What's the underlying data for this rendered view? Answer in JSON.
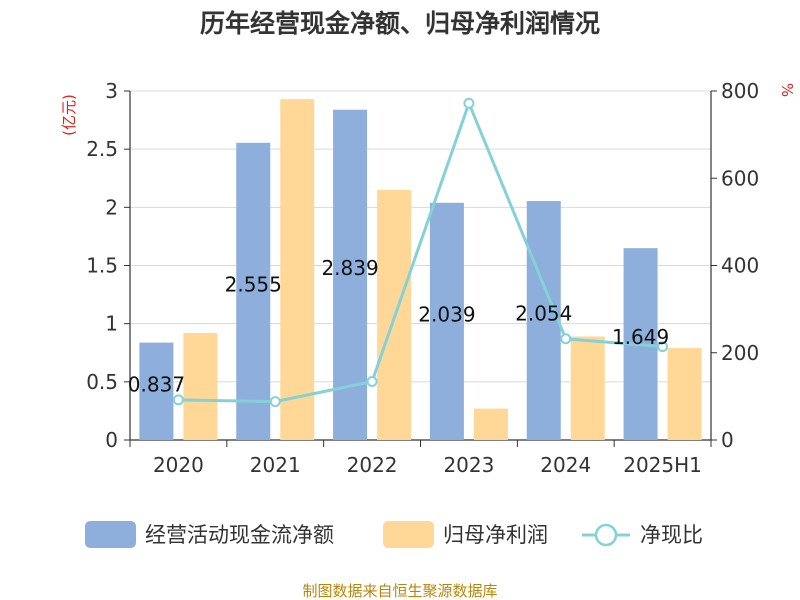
{
  "title": "历年经营现金净额、归母净利润情况",
  "footer": "制图数据来自恒生聚源数据库",
  "chart_data": {
    "type": "bar",
    "categories": [
      "2020",
      "2021",
      "2022",
      "2023",
      "2024",
      "2025H1"
    ],
    "y_left": {
      "unit": "(亿元)",
      "ylim": [
        0,
        3
      ],
      "ticks": [
        "0",
        "0.5",
        "1",
        "1.5",
        "2",
        "2.5",
        "3"
      ]
    },
    "y_right": {
      "unit": "%",
      "ylim": [
        0,
        800
      ],
      "ticks": [
        "0",
        "200",
        "400",
        "600",
        "800"
      ]
    },
    "grid": true,
    "legend_position": "bottom",
    "series": [
      {
        "name": "经营活动现金流净额",
        "type": "bar",
        "axis": "left",
        "color": "#8eaedc",
        "values": [
          0.837,
          2.555,
          2.839,
          2.039,
          2.054,
          1.649
        ],
        "labels": [
          "0.837",
          "2.555",
          "2.839",
          "2.039",
          "2.054",
          "1.649"
        ]
      },
      {
        "name": "归母净利润",
        "type": "bar",
        "axis": "left",
        "color": "#ffd897",
        "values": [
          0.92,
          2.93,
          2.15,
          0.27,
          0.89,
          0.79
        ]
      },
      {
        "name": "净现比",
        "type": "line",
        "axis": "right",
        "color": "#84d2d7",
        "values": [
          92,
          88,
          134,
          772,
          232,
          214
        ]
      }
    ]
  }
}
